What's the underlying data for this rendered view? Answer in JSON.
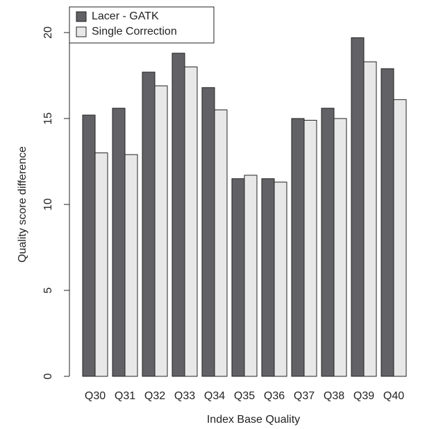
{
  "chart_data": {
    "type": "bar",
    "x_label": "Index Base Quality",
    "y_label": "Quality score difference",
    "categories": [
      "Q30",
      "Q31",
      "Q32",
      "Q33",
      "Q34",
      "Q35",
      "Q36",
      "Q37",
      "Q38",
      "Q39",
      "Q40"
    ],
    "series": [
      {
        "name": "Lacer - GATK",
        "color": "#626266",
        "values": [
          15.2,
          15.6,
          17.7,
          18.8,
          16.8,
          11.5,
          11.5,
          15.0,
          15.6,
          19.7,
          17.9
        ]
      },
      {
        "name": "Single Correction",
        "color": "#e8e8e8",
        "values": [
          13.0,
          12.9,
          16.9,
          18.0,
          15.5,
          11.7,
          11.3,
          14.9,
          15.0,
          18.3,
          16.1
        ]
      }
    ],
    "ylim": [
      0,
      20
    ],
    "yticks": [
      0,
      5,
      10,
      15,
      20
    ],
    "legend": "top-left"
  }
}
